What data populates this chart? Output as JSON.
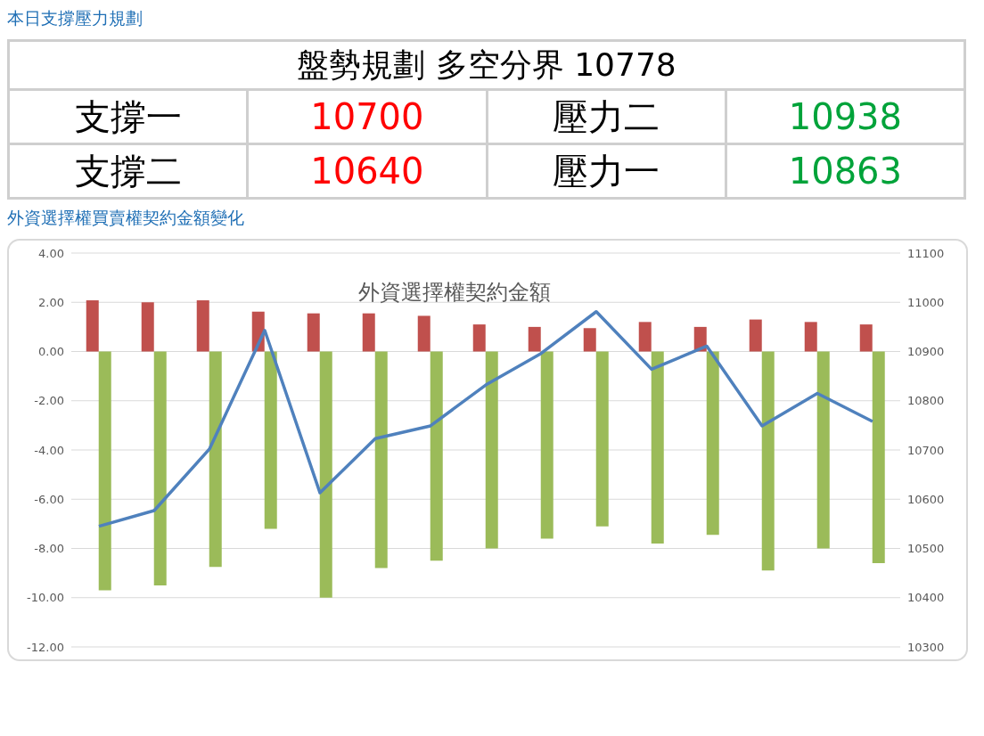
{
  "chart_data": [
    {
      "type": "other",
      "title": "本日支撐壓力規劃",
      "subtitle": "盤勢規劃 多空分界 10778",
      "annotations": [
        "支撐一",
        "10700",
        "壓力二",
        "10938",
        "支撐二",
        "10640",
        "壓力一",
        "10863"
      ]
    },
    {
      "type": "bar",
      "title": "外資選擇權買賣權契約金額變化",
      "subtitle": "外資選擇權契約金額",
      "categories": [
        null,
        null,
        null,
        null,
        null,
        null,
        null,
        null,
        null,
        null,
        null,
        null,
        null,
        null,
        null
      ],
      "series": [
        {
          "color": "#c0504d",
          "values": [
            2.08,
            2.0,
            2.08,
            1.62,
            1.55,
            1.55,
            1.45,
            1.1,
            1.0,
            0.95,
            1.2,
            1.0,
            1.3,
            1.2,
            1.1
          ]
        },
        {
          "color": "#9bbb59",
          "values": [
            -9.7,
            -9.5,
            -8.75,
            -7.2,
            -10.0,
            -8.8,
            -8.5,
            -8.0,
            -7.6,
            -7.1,
            -7.8,
            -7.45,
            -8.9,
            -8.0,
            -8.6
          ]
        },
        {
          "type": "line",
          "axis": "y2",
          "color": "#4f81bd",
          "values": [
            10545,
            10577,
            10702,
            10943,
            10613,
            10723,
            10749,
            10832,
            10896,
            10981,
            10864,
            10911,
            10749,
            10815,
            10758
          ]
        }
      ],
      "ylim": [
        -12,
        4
      ],
      "yticks": [
        {
          "value": -12,
          "label": "-12.00"
        },
        {
          "value": -10,
          "label": "-10.00"
        },
        {
          "value": -8,
          "label": "-8.00"
        },
        {
          "value": -6,
          "label": "-6.00"
        },
        {
          "value": -4,
          "label": "-4.00"
        },
        {
          "value": -2,
          "label": "-2.00"
        },
        {
          "value": 0,
          "label": "0.00"
        },
        {
          "value": 2,
          "label": "2.00"
        },
        {
          "value": 4,
          "label": "4.00"
        }
      ],
      "y2lim": [
        10300,
        11100
      ],
      "y2ticks": [
        10300,
        10400,
        10500,
        10600,
        10700,
        10800,
        10900,
        11000,
        11100
      ],
      "grid": "y",
      "legend": false,
      "marker": "none",
      "line_style": "solid",
      "tick_labels": "y"
    }
  ]
}
